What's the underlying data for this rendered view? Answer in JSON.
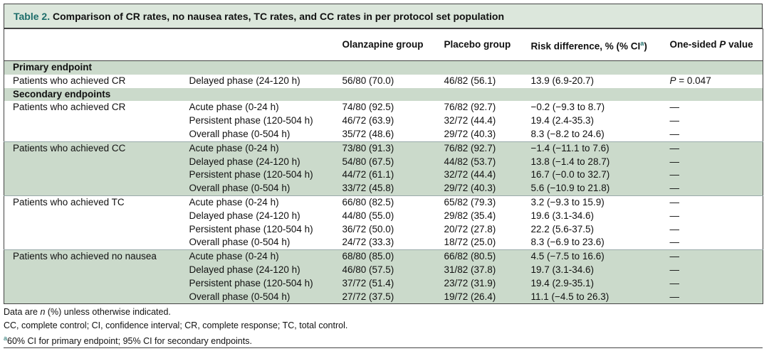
{
  "title": {
    "label": "Table 2.",
    "text": "Comparison of CR rates, no nausea rates, TC rates, and CC rates in per protocol set population"
  },
  "header": {
    "olanzapine": "Olanzapine group",
    "placebo": "Placebo group",
    "risk_difference": {
      "text": "Risk difference, % (% CI",
      "sup": "a",
      "close": ")"
    },
    "p_value": {
      "before": "One-sided",
      "italic": "P",
      "after": "value"
    }
  },
  "sections": [
    {
      "title": "Primary endpoint",
      "groups": [
        {
          "label": "Patients who achieved CR",
          "shaded": false,
          "rows": [
            [
              "Delayed phase (24-120 h)",
              "56/80 (70.0)",
              "46/82 (56.1)",
              "13.9 (6.9-20.7)",
              {
                "italic": "P",
                "text": "= 0.047"
              }
            ]
          ]
        }
      ]
    },
    {
      "title": "Secondary endpoints",
      "groups": [
        {
          "label": "Patients who achieved CR",
          "shaded": false,
          "rows": [
            [
              "Acute phase (0-24 h)",
              "74/80 (92.5)",
              "76/82 (92.7)",
              "−0.2 (−9.3 to 8.7)",
              "—"
            ],
            [
              "Persistent phase (120-504 h)",
              "46/72 (63.9)",
              "32/72 (44.4)",
              "19.4 (2.4-35.3)",
              "—"
            ],
            [
              "Overall phase (0-504 h)",
              "35/72 (48.6)",
              "29/72 (40.3)",
              "8.3 (−8.2 to 24.6)",
              "—"
            ]
          ]
        },
        {
          "label": "Patients who achieved CC",
          "shaded": true,
          "rows": [
            [
              "Acute phase (0-24 h)",
              "73/80 (91.3)",
              "76/82 (92.7)",
              "−1.4 (−11.1 to 7.6)",
              "—"
            ],
            [
              "Delayed phase (24-120 h)",
              "54/80 (67.5)",
              "44/82 (53.7)",
              "13.8 (−1.4 to 28.7)",
              "—"
            ],
            [
              "Persistent phase (120-504 h)",
              "44/72 (61.1)",
              "32/72 (44.4)",
              "16.7 (−0.0 to 32.7)",
              "—"
            ],
            [
              "Overall phase (0-504 h)",
              "33/72 (45.8)",
              "29/72 (40.3)",
              "5.6 (−10.9 to 21.8)",
              "—"
            ]
          ]
        },
        {
          "label": "Patients who achieved TC",
          "shaded": false,
          "rows": [
            [
              "Acute phase (0-24 h)",
              "66/80 (82.5)",
              "65/82 (79.3)",
              "3.2 (−9.3 to 15.9)",
              "—"
            ],
            [
              "Delayed phase (24-120 h)",
              "44/80 (55.0)",
              "29/82 (35.4)",
              "19.6 (3.1-34.6)",
              "—"
            ],
            [
              "Persistent phase (120-504 h)",
              "36/72 (50.0)",
              "20/72 (27.8)",
              "22.2 (5.6-37.5)",
              "—"
            ],
            [
              "Overall phase (0-504 h)",
              "24/72 (33.3)",
              "18/72 (25.0)",
              "8.3 (−6.9 to 23.6)",
              "—"
            ]
          ]
        },
        {
          "label": "Patients who achieved no nausea",
          "shaded": true,
          "rows": [
            [
              "Acute phase (0-24 h)",
              "68/80 (85.0)",
              "66/82 (80.5)",
              "4.5 (−7.5 to 16.6)",
              "—"
            ],
            [
              "Delayed phase (24-120 h)",
              "46/80 (57.5)",
              "31/82 (37.8)",
              "19.7 (3.1-34.6)",
              "—"
            ],
            [
              "Persistent phase (120-504 h)",
              "37/72 (51.4)",
              "23/72 (31.9)",
              "19.4 (2.9-35.1)",
              "—"
            ],
            [
              "Overall phase (0-504 h)",
              "27/72 (37.5)",
              "19/72 (26.4)",
              "11.1 (−4.5 to 26.3)",
              "—"
            ]
          ]
        }
      ]
    }
  ],
  "footnotes": [
    {
      "before": "Data are",
      "italic": "n",
      "after": "(%) unless otherwise indicated."
    },
    "CC, complete control; CI, confidence interval; CR, complete response; TC, total control.",
    {
      "sup": "a",
      "text": "60% CI for primary endpoint; 95% CI for secondary endpoints."
    }
  ]
}
